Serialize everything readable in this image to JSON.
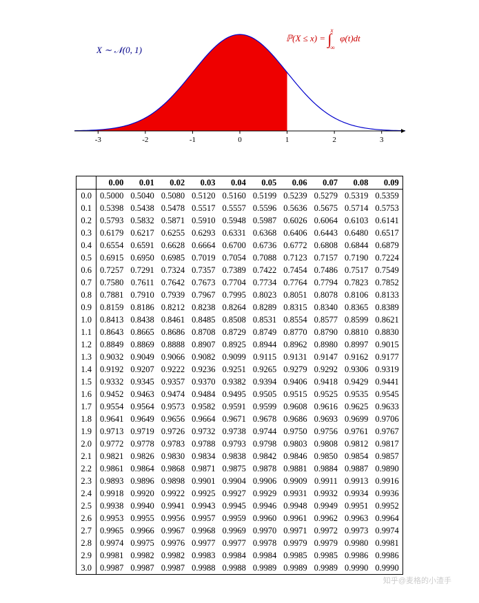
{
  "chart": {
    "type": "area",
    "curve_color": "#0000cc",
    "fill_color": "#ee0000",
    "background_color": "#ffffff",
    "axis_color": "#000000",
    "xlim": [
      -3.5,
      3.5
    ],
    "fill_to_x": 1.0,
    "xticks": [
      -3,
      -2,
      -1,
      0,
      1,
      2,
      3
    ],
    "label_left": "X ∼ 𝒩(0, 1)",
    "label_right_lhs": "ℙ(X ≤ x) =",
    "label_right_int_sup": "x",
    "label_right_int_sub": "−∞",
    "label_right_rhs": "φ(t)dt"
  },
  "table": {
    "col_headers": [
      "",
      "0.00",
      "0.01",
      "0.02",
      "0.03",
      "0.04",
      "0.05",
      "0.06",
      "0.07",
      "0.08",
      "0.09"
    ],
    "rows": [
      [
        "0.0",
        "0.5000",
        "0.5040",
        "0.5080",
        "0.5120",
        "0.5160",
        "0.5199",
        "0.5239",
        "0.5279",
        "0.5319",
        "0.5359"
      ],
      [
        "0.1",
        "0.5398",
        "0.5438",
        "0.5478",
        "0.5517",
        "0.5557",
        "0.5596",
        "0.5636",
        "0.5675",
        "0.5714",
        "0.5753"
      ],
      [
        "0.2",
        "0.5793",
        "0.5832",
        "0.5871",
        "0.5910",
        "0.5948",
        "0.5987",
        "0.6026",
        "0.6064",
        "0.6103",
        "0.6141"
      ],
      [
        "0.3",
        "0.6179",
        "0.6217",
        "0.6255",
        "0.6293",
        "0.6331",
        "0.6368",
        "0.6406",
        "0.6443",
        "0.6480",
        "0.6517"
      ],
      [
        "0.4",
        "0.6554",
        "0.6591",
        "0.6628",
        "0.6664",
        "0.6700",
        "0.6736",
        "0.6772",
        "0.6808",
        "0.6844",
        "0.6879"
      ],
      [
        "0.5",
        "0.6915",
        "0.6950",
        "0.6985",
        "0.7019",
        "0.7054",
        "0.7088",
        "0.7123",
        "0.7157",
        "0.7190",
        "0.7224"
      ],
      [
        "0.6",
        "0.7257",
        "0.7291",
        "0.7324",
        "0.7357",
        "0.7389",
        "0.7422",
        "0.7454",
        "0.7486",
        "0.7517",
        "0.7549"
      ],
      [
        "0.7",
        "0.7580",
        "0.7611",
        "0.7642",
        "0.7673",
        "0.7704",
        "0.7734",
        "0.7764",
        "0.7794",
        "0.7823",
        "0.7852"
      ],
      [
        "0.8",
        "0.7881",
        "0.7910",
        "0.7939",
        "0.7967",
        "0.7995",
        "0.8023",
        "0.8051",
        "0.8078",
        "0.8106",
        "0.8133"
      ],
      [
        "0.9",
        "0.8159",
        "0.8186",
        "0.8212",
        "0.8238",
        "0.8264",
        "0.8289",
        "0.8315",
        "0.8340",
        "0.8365",
        "0.8389"
      ],
      [
        "1.0",
        "0.8413",
        "0.8438",
        "0.8461",
        "0.8485",
        "0.8508",
        "0.8531",
        "0.8554",
        "0.8577",
        "0.8599",
        "0.8621"
      ],
      [
        "1.1",
        "0.8643",
        "0.8665",
        "0.8686",
        "0.8708",
        "0.8729",
        "0.8749",
        "0.8770",
        "0.8790",
        "0.8810",
        "0.8830"
      ],
      [
        "1.2",
        "0.8849",
        "0.8869",
        "0.8888",
        "0.8907",
        "0.8925",
        "0.8944",
        "0.8962",
        "0.8980",
        "0.8997",
        "0.9015"
      ],
      [
        "1.3",
        "0.9032",
        "0.9049",
        "0.9066",
        "0.9082",
        "0.9099",
        "0.9115",
        "0.9131",
        "0.9147",
        "0.9162",
        "0.9177"
      ],
      [
        "1.4",
        "0.9192",
        "0.9207",
        "0.9222",
        "0.9236",
        "0.9251",
        "0.9265",
        "0.9279",
        "0.9292",
        "0.9306",
        "0.9319"
      ],
      [
        "1.5",
        "0.9332",
        "0.9345",
        "0.9357",
        "0.9370",
        "0.9382",
        "0.9394",
        "0.9406",
        "0.9418",
        "0.9429",
        "0.9441"
      ],
      [
        "1.6",
        "0.9452",
        "0.9463",
        "0.9474",
        "0.9484",
        "0.9495",
        "0.9505",
        "0.9515",
        "0.9525",
        "0.9535",
        "0.9545"
      ],
      [
        "1.7",
        "0.9554",
        "0.9564",
        "0.9573",
        "0.9582",
        "0.9591",
        "0.9599",
        "0.9608",
        "0.9616",
        "0.9625",
        "0.9633"
      ],
      [
        "1.8",
        "0.9641",
        "0.9649",
        "0.9656",
        "0.9664",
        "0.9671",
        "0.9678",
        "0.9686",
        "0.9693",
        "0.9699",
        "0.9706"
      ],
      [
        "1.9",
        "0.9713",
        "0.9719",
        "0.9726",
        "0.9732",
        "0.9738",
        "0.9744",
        "0.9750",
        "0.9756",
        "0.9761",
        "0.9767"
      ],
      [
        "2.0",
        "0.9772",
        "0.9778",
        "0.9783",
        "0.9788",
        "0.9793",
        "0.9798",
        "0.9803",
        "0.9808",
        "0.9812",
        "0.9817"
      ],
      [
        "2.1",
        "0.9821",
        "0.9826",
        "0.9830",
        "0.9834",
        "0.9838",
        "0.9842",
        "0.9846",
        "0.9850",
        "0.9854",
        "0.9857"
      ],
      [
        "2.2",
        "0.9861",
        "0.9864",
        "0.9868",
        "0.9871",
        "0.9875",
        "0.9878",
        "0.9881",
        "0.9884",
        "0.9887",
        "0.9890"
      ],
      [
        "2.3",
        "0.9893",
        "0.9896",
        "0.9898",
        "0.9901",
        "0.9904",
        "0.9906",
        "0.9909",
        "0.9911",
        "0.9913",
        "0.9916"
      ],
      [
        "2.4",
        "0.9918",
        "0.9920",
        "0.9922",
        "0.9925",
        "0.9927",
        "0.9929",
        "0.9931",
        "0.9932",
        "0.9934",
        "0.9936"
      ],
      [
        "2.5",
        "0.9938",
        "0.9940",
        "0.9941",
        "0.9943",
        "0.9945",
        "0.9946",
        "0.9948",
        "0.9949",
        "0.9951",
        "0.9952"
      ],
      [
        "2.6",
        "0.9953",
        "0.9955",
        "0.9956",
        "0.9957",
        "0.9959",
        "0.9960",
        "0.9961",
        "0.9962",
        "0.9963",
        "0.9964"
      ],
      [
        "2.7",
        "0.9965",
        "0.9966",
        "0.9967",
        "0.9968",
        "0.9969",
        "0.9970",
        "0.9971",
        "0.9972",
        "0.9973",
        "0.9974"
      ],
      [
        "2.8",
        "0.9974",
        "0.9975",
        "0.9976",
        "0.9977",
        "0.9977",
        "0.9978",
        "0.9979",
        "0.9979",
        "0.9980",
        "0.9981"
      ],
      [
        "2.9",
        "0.9981",
        "0.9982",
        "0.9982",
        "0.9983",
        "0.9984",
        "0.9984",
        "0.9985",
        "0.9985",
        "0.9986",
        "0.9986"
      ],
      [
        "3.0",
        "0.9987",
        "0.9987",
        "0.9987",
        "0.9988",
        "0.9988",
        "0.9989",
        "0.9989",
        "0.9989",
        "0.9990",
        "0.9990"
      ]
    ]
  },
  "watermark": "知乎@麦格的小渣手"
}
